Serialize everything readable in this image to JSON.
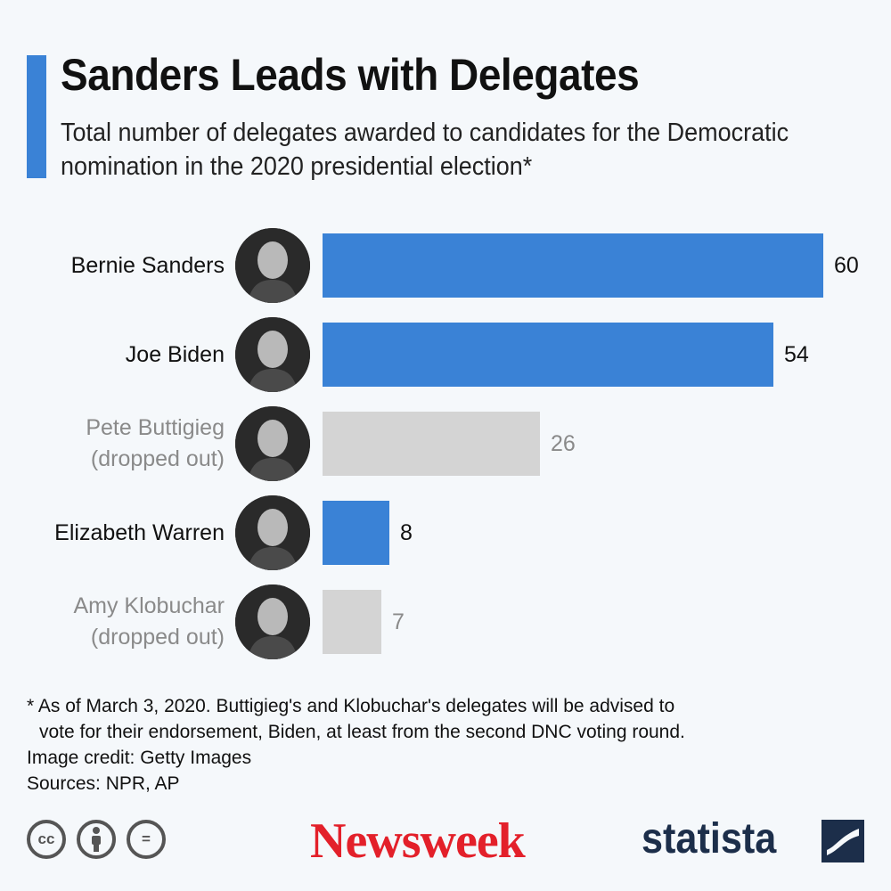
{
  "header": {
    "title": "Sanders Leads with Delegates",
    "subtitle": "Total number of delegates awarded to candidates for the Democratic nomination in the 2020 presidential election*"
  },
  "colors": {
    "accent": "#3a82d6",
    "dropped": "#d4d4d4",
    "dropped_text": "#8a8a8a"
  },
  "chart_data": {
    "type": "bar",
    "orientation": "horizontal",
    "title": "Sanders Leads with Delegates",
    "subtitle": "Total number of delegates awarded to candidates for the Democratic nomination in the 2020 presidential election*",
    "categories": [
      [
        "Bernie Sanders"
      ],
      [
        "Joe Biden"
      ],
      [
        "Pete Buttigieg",
        "(dropped out)"
      ],
      [
        "Elizabeth Warren"
      ],
      [
        "Amy Klobuchar",
        "(dropped out)"
      ]
    ],
    "values": [
      60,
      54,
      26,
      8,
      7
    ],
    "status": [
      "active",
      "active",
      "dropped",
      "active",
      "dropped"
    ],
    "xlim": [
      0,
      60
    ],
    "grid": false,
    "data_labels": true,
    "avatar_icons": [
      "portrait-sanders",
      "portrait-biden",
      "portrait-buttigieg",
      "portrait-warren",
      "portrait-klobuchar"
    ]
  },
  "footer": {
    "note_line1": "* As of March 3, 2020. Buttigieg's and Klobuchar's delegates will be advised to",
    "note_line2": "vote for their endorsement, Biden, at least from the second DNC voting round.",
    "credit": "Image credit: Getty Images",
    "sources": "Sources: NPR, AP",
    "cc_icons": [
      "cc",
      "by",
      "nd"
    ],
    "cc_labels": [
      "cc",
      "",
      "="
    ],
    "brand_newsweek": "Newsweek",
    "brand_statista": "statista"
  }
}
